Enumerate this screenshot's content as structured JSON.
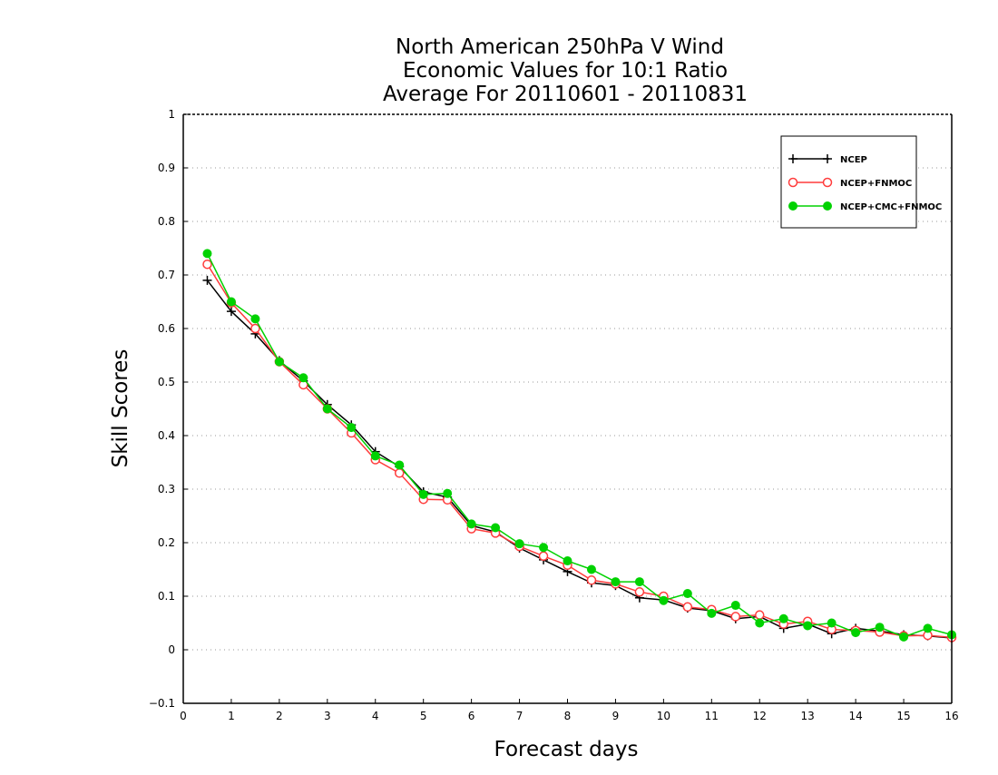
{
  "chart_data": {
    "type": "line",
    "title": [
      "North American 250hPa V Wind",
      "Economic Values for 10:1 Ratio",
      "Average For 20110601 - 20110831"
    ],
    "xlabel": "Forecast days",
    "ylabel": "Skill Scores",
    "xlim": [
      0,
      16
    ],
    "ylim": [
      -0.1,
      1
    ],
    "x_ticks": [
      0,
      1,
      2,
      3,
      4,
      5,
      6,
      7,
      8,
      9,
      10,
      11,
      12,
      13,
      14,
      15,
      16
    ],
    "y_ticks": [
      -0.1,
      0,
      0.1,
      0.2,
      0.3,
      0.4,
      0.5,
      0.6,
      0.7,
      0.8,
      0.9,
      1
    ],
    "x_tick_labels": [
      "0",
      "1",
      "2",
      "3",
      "4",
      "5",
      "6",
      "7",
      "8",
      "9",
      "10",
      "11",
      "12",
      "13",
      "14",
      "15",
      "16"
    ],
    "y_tick_labels": [
      "−0.1",
      "0",
      "0.1",
      "0.2",
      "0.3",
      "0.4",
      "0.5",
      "0.6",
      "0.7",
      "0.8",
      "0.9",
      "1"
    ],
    "grid": "horizontal-dotted",
    "legend_position": "top-right",
    "x": [
      0.5,
      1,
      1.5,
      2,
      2.5,
      3,
      3.5,
      4,
      4.5,
      5,
      5.5,
      6,
      6.5,
      7,
      7.5,
      8,
      8.5,
      9,
      9.5,
      10,
      10.5,
      11,
      11.5,
      12,
      12.5,
      13,
      13.5,
      14,
      14.5,
      15,
      15.5,
      16
    ],
    "series": [
      {
        "name": "NCEP",
        "color": "#000000",
        "marker": "plus",
        "values": [
          0.69,
          0.632,
          0.59,
          0.54,
          0.502,
          0.458,
          0.42,
          0.37,
          0.342,
          0.295,
          0.285,
          0.232,
          0.22,
          0.19,
          0.168,
          0.146,
          0.125,
          0.12,
          0.097,
          0.093,
          0.078,
          0.073,
          0.058,
          0.062,
          0.04,
          0.048,
          0.03,
          0.04,
          0.035,
          0.028,
          0.026,
          0.022
        ]
      },
      {
        "name": "NCEP+FNMOC",
        "color": "#ff3c3c",
        "marker": "open-circle",
        "values": [
          0.72,
          0.648,
          0.6,
          0.538,
          0.495,
          0.45,
          0.405,
          0.355,
          0.33,
          0.281,
          0.28,
          0.226,
          0.218,
          0.193,
          0.175,
          0.158,
          0.13,
          0.123,
          0.108,
          0.1,
          0.08,
          0.075,
          0.062,
          0.065,
          0.048,
          0.053,
          0.038,
          0.036,
          0.033,
          0.026,
          0.027,
          0.023
        ]
      },
      {
        "name": "NCEP+CMC+FNMOC",
        "color": "#00d200",
        "marker": "filled-circle",
        "values": [
          0.74,
          0.65,
          0.618,
          0.538,
          0.508,
          0.45,
          0.415,
          0.362,
          0.345,
          0.29,
          0.292,
          0.235,
          0.228,
          0.198,
          0.191,
          0.166,
          0.15,
          0.127,
          0.127,
          0.092,
          0.105,
          0.068,
          0.083,
          0.05,
          0.058,
          0.045,
          0.05,
          0.032,
          0.042,
          0.024,
          0.04,
          0.028
        ]
      }
    ]
  }
}
